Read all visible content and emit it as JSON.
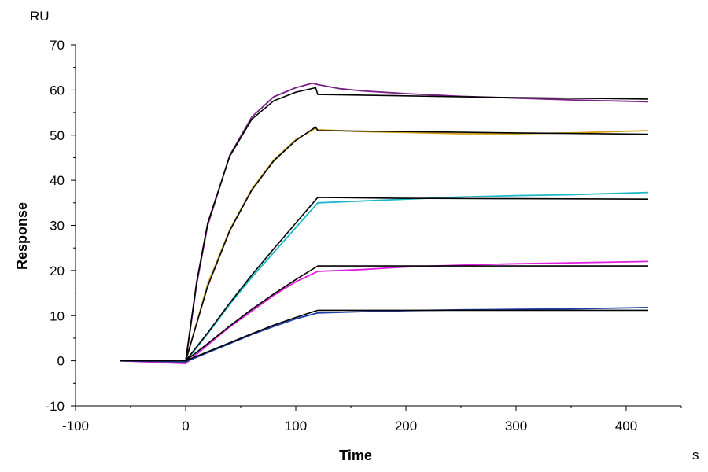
{
  "chart_data": {
    "type": "line",
    "title": "",
    "xlabel": "Time",
    "ylabel": "Response",
    "x_unit": "s",
    "y_unit": "RU",
    "xlim": [
      -100,
      450
    ],
    "ylim": [
      -10,
      70
    ],
    "x_ticks": [
      -100,
      0,
      100,
      200,
      300,
      400
    ],
    "y_ticks": [
      -10,
      0,
      10,
      20,
      30,
      40,
      50,
      60,
      70
    ],
    "grid": false,
    "legend": "none",
    "series": [
      {
        "kind": "measured",
        "color": "#7b1f86",
        "points": [
          [
            -60,
            0
          ],
          [
            -40,
            -0.1
          ],
          [
            -20,
            -0.2
          ],
          [
            0,
            -0.3
          ],
          [
            10,
            17
          ],
          [
            20,
            30
          ],
          [
            40,
            45.5
          ],
          [
            60,
            54
          ],
          [
            80,
            58.5
          ],
          [
            100,
            60.5
          ],
          [
            115,
            61.5
          ],
          [
            120,
            61.2
          ],
          [
            140,
            60.3
          ],
          [
            160,
            59.8
          ],
          [
            200,
            59.2
          ],
          [
            250,
            58.6
          ],
          [
            300,
            58.2
          ],
          [
            350,
            57.8
          ],
          [
            420,
            57.4
          ]
        ]
      },
      {
        "kind": "fit",
        "color": "#000000",
        "points": [
          [
            -60,
            0
          ],
          [
            0,
            0
          ],
          [
            10,
            17.5
          ],
          [
            20,
            30.5
          ],
          [
            40,
            45.3
          ],
          [
            60,
            53.5
          ],
          [
            80,
            57.6
          ],
          [
            100,
            59.5
          ],
          [
            118,
            60.5
          ],
          [
            120,
            59
          ],
          [
            200,
            58.7
          ],
          [
            300,
            58.3
          ],
          [
            420,
            58
          ]
        ]
      },
      {
        "kind": "measured",
        "color": "#d4a017",
        "points": [
          [
            -60,
            0
          ],
          [
            -20,
            -0.1
          ],
          [
            0,
            -0.2
          ],
          [
            20,
            17
          ],
          [
            40,
            29
          ],
          [
            60,
            38
          ],
          [
            80,
            44.5
          ],
          [
            100,
            49
          ],
          [
            118,
            51.5
          ],
          [
            120,
            51.2
          ],
          [
            160,
            50.8
          ],
          [
            200,
            50.6
          ],
          [
            250,
            50.3
          ],
          [
            300,
            50.3
          ],
          [
            350,
            50.5
          ],
          [
            420,
            51
          ]
        ]
      },
      {
        "kind": "fit",
        "color": "#000000",
        "points": [
          [
            -60,
            0
          ],
          [
            0,
            0
          ],
          [
            20,
            16.5
          ],
          [
            40,
            28.8
          ],
          [
            60,
            37.8
          ],
          [
            80,
            44.3
          ],
          [
            100,
            48.8
          ],
          [
            118,
            51.8
          ],
          [
            120,
            51
          ],
          [
            200,
            50.8
          ],
          [
            300,
            50.5
          ],
          [
            420,
            50.2
          ]
        ]
      },
      {
        "kind": "measured",
        "color": "#1ab8c8",
        "points": [
          [
            -60,
            0
          ],
          [
            0,
            -0.2
          ],
          [
            20,
            6
          ],
          [
            40,
            12.5
          ],
          [
            60,
            18.5
          ],
          [
            80,
            24
          ],
          [
            100,
            29.5
          ],
          [
            120,
            35
          ],
          [
            150,
            35.3
          ],
          [
            200,
            35.8
          ],
          [
            250,
            36.3
          ],
          [
            300,
            36.6
          ],
          [
            350,
            36.8
          ],
          [
            420,
            37.3
          ]
        ]
      },
      {
        "kind": "fit",
        "color": "#000000",
        "points": [
          [
            -60,
            0
          ],
          [
            0,
            0
          ],
          [
            20,
            6.2
          ],
          [
            40,
            12.8
          ],
          [
            60,
            19
          ],
          [
            80,
            24.8
          ],
          [
            100,
            30.5
          ],
          [
            120,
            36.2
          ],
          [
            200,
            36
          ],
          [
            300,
            35.9
          ],
          [
            420,
            35.8
          ]
        ]
      },
      {
        "kind": "measured",
        "color": "#e020e0",
        "points": [
          [
            -60,
            0
          ],
          [
            0,
            -0.6
          ],
          [
            20,
            3.5
          ],
          [
            40,
            7.5
          ],
          [
            60,
            11
          ],
          [
            80,
            14.5
          ],
          [
            100,
            17.5
          ],
          [
            120,
            19.8
          ],
          [
            160,
            20.2
          ],
          [
            200,
            20.8
          ],
          [
            250,
            21.2
          ],
          [
            300,
            21.5
          ],
          [
            350,
            21.7
          ],
          [
            420,
            22
          ]
        ]
      },
      {
        "kind": "fit",
        "color": "#000000",
        "points": [
          [
            -60,
            0
          ],
          [
            0,
            0
          ],
          [
            20,
            3.8
          ],
          [
            40,
            7.7
          ],
          [
            60,
            11.4
          ],
          [
            80,
            14.8
          ],
          [
            100,
            18
          ],
          [
            120,
            21
          ],
          [
            200,
            21
          ],
          [
            300,
            21
          ],
          [
            420,
            21
          ]
        ]
      },
      {
        "kind": "measured",
        "color": "#1f3fa8",
        "points": [
          [
            -60,
            0
          ],
          [
            0,
            -0.2
          ],
          [
            20,
            1.8
          ],
          [
            40,
            3.8
          ],
          [
            60,
            5.8
          ],
          [
            80,
            7.6
          ],
          [
            100,
            9.3
          ],
          [
            120,
            10.6
          ],
          [
            160,
            10.9
          ],
          [
            200,
            11.1
          ],
          [
            250,
            11.3
          ],
          [
            300,
            11.4
          ],
          [
            350,
            11.5
          ],
          [
            420,
            11.8
          ]
        ]
      },
      {
        "kind": "fit",
        "color": "#000000",
        "points": [
          [
            -60,
            0
          ],
          [
            0,
            0
          ],
          [
            20,
            2
          ],
          [
            40,
            4
          ],
          [
            60,
            6
          ],
          [
            80,
            7.9
          ],
          [
            100,
            9.6
          ],
          [
            120,
            11.2
          ],
          [
            200,
            11.2
          ],
          [
            300,
            11.2
          ],
          [
            420,
            11.2
          ]
        ]
      }
    ]
  }
}
